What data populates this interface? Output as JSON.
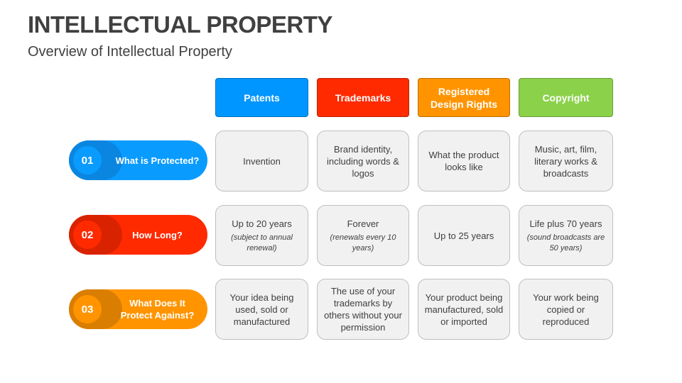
{
  "title": "INTELLECTUAL PROPERTY",
  "subtitle": "Overview of Intellectual Property",
  "columns": [
    {
      "label": "Patents",
      "color": "#0096ff"
    },
    {
      "label": "Trademarks",
      "color": "#ff2a00"
    },
    {
      "label": "Registered Design Rights",
      "color": "#ff9400"
    },
    {
      "label": "Copyright",
      "color": "#8bd14a"
    }
  ],
  "rows": [
    {
      "num": "01",
      "label": "What is Protected?",
      "color": "#0a9bff",
      "shade": "#0a86e0",
      "cells": [
        {
          "text": "Invention"
        },
        {
          "text": "Brand identity, including words & logos"
        },
        {
          "text": "What the product looks like"
        },
        {
          "text": "Music, art, film, literary works & broadcasts"
        }
      ]
    },
    {
      "num": "02",
      "label": "How Long?",
      "color": "#ff2a00",
      "shade": "#d92200",
      "cells": [
        {
          "text": "Up to 20 years",
          "note": "(subject to annual renewal)"
        },
        {
          "text": "Forever",
          "note": "(renewals every 10 years)"
        },
        {
          "text": "Up to 25 years"
        },
        {
          "text": "Life plus 70 years",
          "note": "(sound broadcasts are 50 years)"
        }
      ]
    },
    {
      "num": "03",
      "label": "What Does It Protect Against?",
      "color": "#ff9400",
      "shade": "#d97e00",
      "cells": [
        {
          "text": "Your idea being used, sold or manufactured"
        },
        {
          "text": "The use of your trademarks by others without your permission"
        },
        {
          "text": "Your product being manufactured, sold or imported"
        },
        {
          "text": "Your work being copied or reproduced"
        }
      ]
    }
  ]
}
